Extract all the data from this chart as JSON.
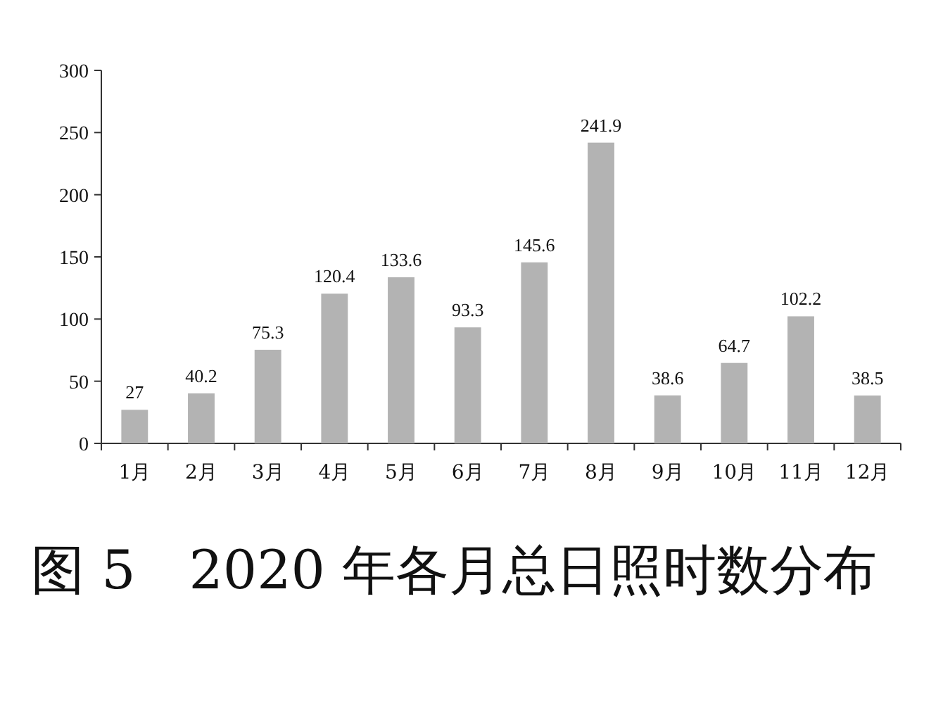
{
  "chart_data": {
    "type": "bar",
    "title": "图 5　2020 年各月总日照时数分布",
    "categories": [
      "1月",
      "2月",
      "3月",
      "4月",
      "5月",
      "6月",
      "7月",
      "8月",
      "9月",
      "10月",
      "11月",
      "12月"
    ],
    "values": [
      27,
      40.2,
      75.3,
      120.4,
      133.6,
      93.3,
      145.6,
      241.9,
      38.6,
      64.7,
      102.2,
      38.5
    ],
    "color": "#b3b3b3",
    "ylim": [
      0,
      300
    ],
    "yticks": [
      0,
      50,
      100,
      150,
      200,
      250,
      300
    ],
    "data_labels": true
  }
}
